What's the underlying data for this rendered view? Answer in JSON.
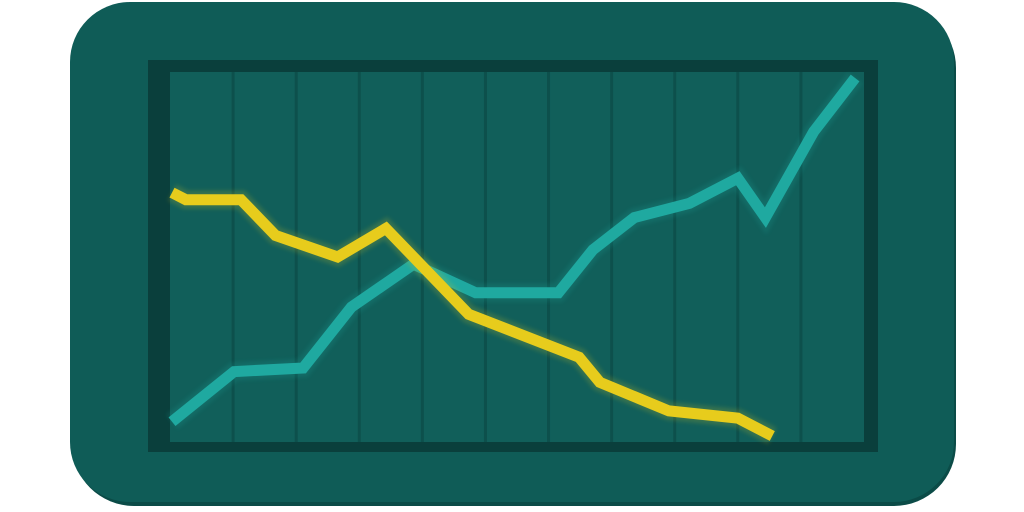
{
  "colors": {
    "frame": "#0f5c57",
    "frame_edge": "#0b4b47",
    "screen_border": "#0a3f3c",
    "screen_bg": "#115f5a",
    "gridline": "#0b4743",
    "series_teal": "#1fa9a0",
    "series_yellow": "#e7cc1c"
  },
  "chart_data": {
    "type": "line",
    "title": "",
    "xlabel": "",
    "ylabel": "",
    "grid": "vertical",
    "legend": "none",
    "xlim": [
      0,
      10
    ],
    "ylim": [
      0,
      100
    ],
    "series": [
      {
        "color": "#1fa9a0",
        "x": [
          0,
          0.9,
          1.9,
          2.6,
          3.5,
          4.4,
          5.6,
          6.1,
          6.7,
          7.5,
          8.2,
          8.6,
          9.3,
          9.9
        ],
        "y": [
          4,
          18,
          19,
          36,
          48,
          40,
          40,
          52,
          61,
          65,
          72,
          61,
          85,
          100
        ]
      },
      {
        "color": "#e7cc1c",
        "x": [
          0,
          0.2,
          1.0,
          1.5,
          2.4,
          3.1,
          4.3,
          5.9,
          6.2,
          7.2,
          8.2,
          8.7
        ],
        "y": [
          68,
          66,
          66,
          56,
          50,
          58,
          34,
          22,
          15,
          7,
          5,
          0
        ]
      }
    ]
  }
}
